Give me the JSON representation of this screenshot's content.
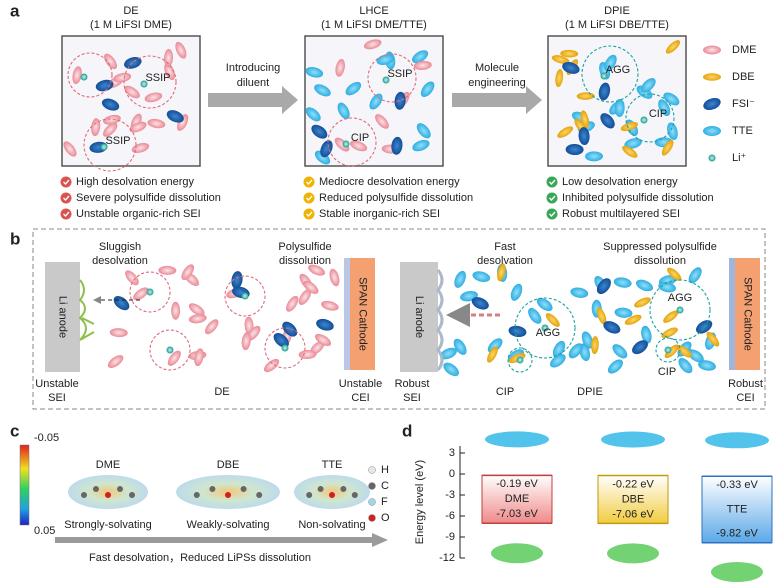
{
  "panel_a": {
    "label": "a",
    "electrolytes": [
      {
        "name": "DE",
        "formula": "(1 M LiFSI DME)",
        "clusters": [
          "SSIP",
          "SSIP"
        ],
        "features": [
          "High desolvation energy",
          "Severe polysulfide dissolution",
          "Unstable organic-rich SEI"
        ]
      },
      {
        "name": "LHCE",
        "formula": "(1 M LiFSI DME/TTE)",
        "clusters": [
          "SSIP",
          "CIP"
        ],
        "features": [
          "Mediocre desolvation energy",
          "Reduced polysulfide dissolution",
          "Stable inorganic-rich SEI"
        ]
      },
      {
        "name": "DPIE",
        "formula": "(1 M LiFSI DBE/TTE)",
        "clusters": [
          "AGG",
          "CIP"
        ],
        "features": [
          "Low desolvation energy",
          "Inhibited polysulfide dissolution",
          "Robust multilayered SEI"
        ]
      }
    ],
    "steps": [
      [
        "Introducing",
        "diluent"
      ],
      [
        "Molecule",
        "engineering"
      ]
    ],
    "legend": [
      "DME",
      "DBE",
      "FSI⁻",
      "TTE",
      "Li⁺"
    ]
  },
  "panel_b": {
    "label": "b",
    "de": {
      "name": "DE",
      "anode": "Li anode",
      "cathode": "SPAN Cathode",
      "process_1": [
        "Sluggish",
        "desolvation"
      ],
      "process_2": [
        "Polysulfide",
        "dissolution"
      ],
      "sei": [
        "Unstable",
        "SEI"
      ],
      "cei": [
        "Unstable",
        "CEI"
      ]
    },
    "dpie": {
      "name": "DPIE",
      "anode": "Li anode",
      "cathode": "SPAN Cathode",
      "process_1": [
        "Fast",
        "desolvation"
      ],
      "process_2": [
        "Suppressed polysulfide",
        "dissolution"
      ],
      "sei": [
        "Robust",
        "SEI"
      ],
      "cei": [
        "Robust",
        "CEI"
      ],
      "clusters": [
        "AGG",
        "AGG",
        "CIP",
        "CIP"
      ]
    }
  },
  "panel_c": {
    "label": "c",
    "colorbar": [
      -0.05,
      0.05
    ],
    "molecules": [
      {
        "name": "DME",
        "role": "Strongly-solvating"
      },
      {
        "name": "DBE",
        "role": "Weakly-solvating"
      },
      {
        "name": "TTE",
        "role": "Non-solvating"
      }
    ],
    "atoms": [
      "H",
      "C",
      "F",
      "O"
    ],
    "arrow_text": "Fast desolvation，Reduced LiPSs dissolution"
  },
  "panel_d": {
    "label": "d",
    "y_label": "Energy level (eV)",
    "ylim": [
      -12,
      4
    ],
    "yticks": [
      3,
      0,
      -3,
      -6,
      -9,
      -12
    ],
    "molecules": [
      {
        "name": "DME",
        "lumo": -0.19,
        "lumo_label": "-0.19 eV",
        "homo": -7.03,
        "homo_label": "-7.03 eV"
      },
      {
        "name": "DBE",
        "lumo": -0.22,
        "lumo_label": "-0.22 eV",
        "homo": -7.06,
        "homo_label": "-7.06 eV"
      },
      {
        "name": "TTE",
        "lumo": -0.33,
        "lumo_label": "-0.33 eV",
        "homo": -9.82,
        "homo_label": "-9.82 eV"
      }
    ]
  }
}
